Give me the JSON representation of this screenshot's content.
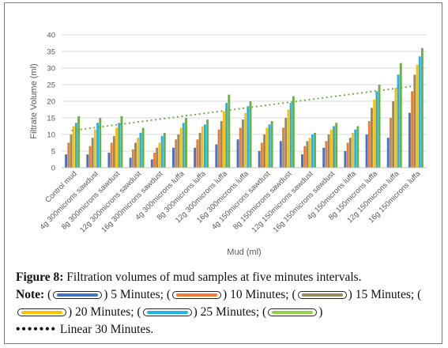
{
  "chart_data": {
    "type": "bar",
    "xlabel": "Mud (ml)",
    "ylabel": "Filtrate Volume (ml)",
    "ylim": [
      0,
      40
    ],
    "yticks": [
      0,
      5,
      10,
      15,
      20,
      25,
      30,
      35,
      40
    ],
    "grid": true,
    "categories": [
      "Control mud",
      "4g 300microns sawdust",
      "8g 300microns sawdust",
      "12g 300microns sawdust",
      "16g 300microns sawdust",
      "4g 300microns luffa",
      "8g 300microns luffa",
      "12g 300microns luffa",
      "16g 300microns luffa",
      "4g 150microns sawdust",
      "8g 150microns sawdust",
      "12g 150microns sawdust",
      "16g 150microns sawdust",
      "4g 150microns luffa",
      "8g 150microns luffa",
      "12g 150microns luffa",
      "16g 150microns luffa"
    ],
    "series": [
      {
        "name": "5 Minutes",
        "color": "#4472c4",
        "values": [
          4,
          4,
          4.5,
          3,
          2.5,
          6,
          6,
          7,
          8.5,
          5,
          8,
          4,
          6,
          5,
          10,
          9,
          16.5
        ]
      },
      {
        "name": "10 Minutes",
        "color": "#ed7d31",
        "values": [
          7.5,
          6.5,
          7.5,
          5.5,
          4.5,
          8.5,
          8.5,
          11.5,
          12,
          7.5,
          12,
          6.5,
          8,
          7.5,
          14,
          15,
          23
        ]
      },
      {
        "name": "15 Minutes",
        "color": "#968b5a",
        "values": [
          10,
          9,
          9.5,
          7.5,
          6,
          10,
          10.5,
          14,
          14.5,
          10,
          15,
          8,
          10,
          9,
          18,
          20,
          28
        ]
      },
      {
        "name": "20 Minutes",
        "color": "#ffc000",
        "values": [
          12.5,
          11.5,
          12,
          9,
          7.5,
          12,
          12.5,
          17,
          16.5,
          12,
          17.5,
          9,
          11.5,
          10.5,
          20.5,
          24,
          31
        ]
      },
      {
        "name": "25 Minutes",
        "color": "#1fb5e8",
        "values": [
          13.5,
          13.5,
          13.5,
          10.5,
          9.5,
          13.5,
          13,
          19.5,
          18.5,
          13,
          19.5,
          10,
          12.5,
          11.5,
          23,
          28,
          33.5
        ]
      },
      {
        "name": "30 Minutes",
        "color": "#70ad47",
        "values": [
          15.5,
          15,
          15.5,
          12,
          10.5,
          15,
          14.5,
          22,
          20,
          14,
          21.5,
          10.5,
          13.5,
          12.5,
          25,
          31.5,
          36
        ]
      }
    ],
    "trendline": {
      "name": "Linear 30 Minutes",
      "color": "#70ad47",
      "style": "dotted"
    }
  },
  "caption": {
    "figure_label": "Figure 8:",
    "figure_text": " Filtration volumes of mud samples at five minutes intervals.",
    "note_label": "Note:",
    "legend": [
      {
        "label": "5 Minutes;",
        "color": "#4472c4"
      },
      {
        "label": "10 Minutes;",
        "color": "#ed7d31"
      },
      {
        "label": "15 Minutes;",
        "color": "#968b5a"
      },
      {
        "label": "20 Minutes;",
        "color": "#ffc000"
      },
      {
        "label": "25 Minutes;",
        "color": "#1fb5e8"
      },
      {
        "label": "",
        "color": "#92d050"
      }
    ],
    "trend_label": "Linear 30 Minutes."
  }
}
